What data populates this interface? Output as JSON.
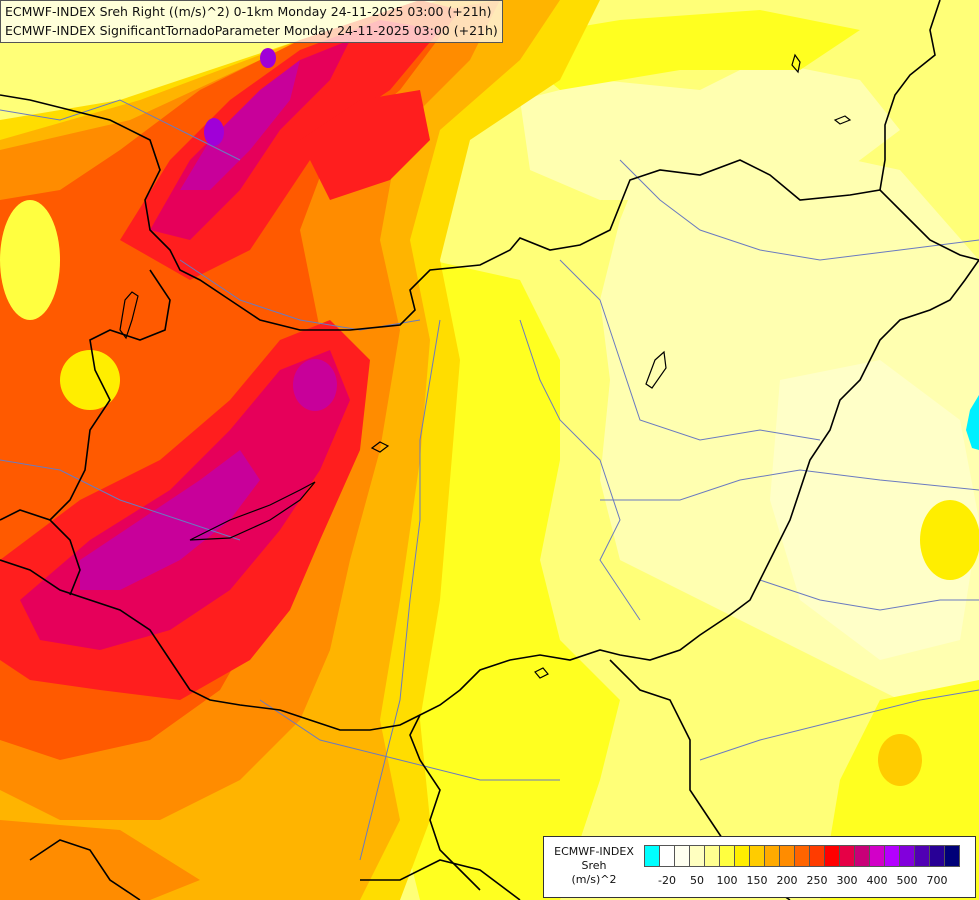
{
  "title": {
    "line1": "ECMWF-INDEX Sreh Right ((m/s)^2) 0-1km Monday 24-11-2025 03:00 (+21h)",
    "line2": "ECMWF-INDEX SignificantTornadoParameter Monday 24-11-2025 03:00 (+21h)"
  },
  "legend": {
    "label_line1": "ECMWF-INDEX",
    "label_line2": "Sreh",
    "label_line3": "(m/s)^2",
    "swatches": [
      {
        "color": "#00ffff"
      },
      {
        "color": "#ffffff"
      },
      {
        "color": "#fffff0"
      },
      {
        "color": "#ffffc0"
      },
      {
        "color": "#ffff90"
      },
      {
        "color": "#ffff40"
      },
      {
        "color": "#ffee00"
      },
      {
        "color": "#ffcc00"
      },
      {
        "color": "#ffaa00"
      },
      {
        "color": "#ff8c00"
      },
      {
        "color": "#ff6400"
      },
      {
        "color": "#ff3c00"
      },
      {
        "color": "#ff0000"
      },
      {
        "color": "#e60046"
      },
      {
        "color": "#c80078"
      },
      {
        "color": "#d200c8"
      },
      {
        "color": "#b400ff"
      },
      {
        "color": "#8200dc"
      },
      {
        "color": "#5000b4"
      },
      {
        "color": "#280096"
      },
      {
        "color": "#000078"
      }
    ],
    "ticks": [
      {
        "label": "-20",
        "at": 1
      },
      {
        "label": "50",
        "at": 3
      },
      {
        "label": "100",
        "at": 5
      },
      {
        "label": "150",
        "at": 7
      },
      {
        "label": "200",
        "at": 9
      },
      {
        "label": "250",
        "at": 11
      },
      {
        "label": "300",
        "at": 13
      },
      {
        "label": "400",
        "at": 15
      },
      {
        "label": "500",
        "at": 17
      },
      {
        "label": "700",
        "at": 19
      }
    ]
  },
  "colors": {
    "pale": "#ffffb0",
    "light_yellow": "#ffff78",
    "yellow": "#ffff20",
    "gold": "#ffdd00",
    "light_orange": "#ffb400",
    "orange": "#ff8c00",
    "dark_orange": "#ff5a00",
    "red": "#ff1e1e",
    "crimson": "#e6005a",
    "magenta": "#c8009a",
    "purple": "#a000d8",
    "cyan_blob": "#00f0ff",
    "border": "#000000",
    "river": "#6a7ac0"
  }
}
